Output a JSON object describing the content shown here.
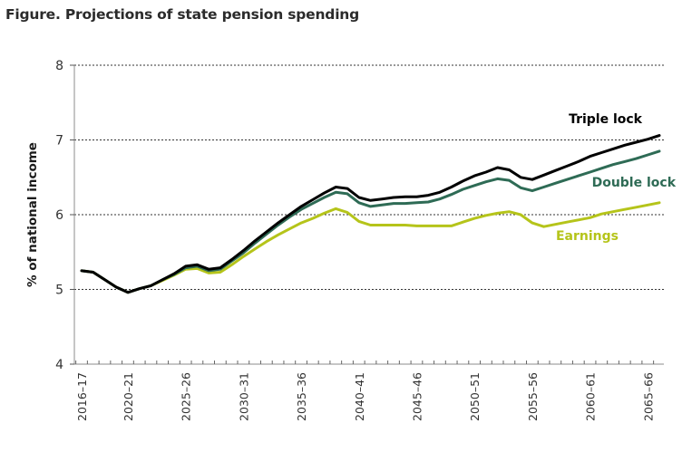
{
  "chart_data": {
    "type": "line",
    "title": "Figure. Projections of state pension spending",
    "xlabel": "",
    "ylabel": "% of national income",
    "ylim": [
      4,
      8
    ],
    "yticks": [
      4,
      5,
      6,
      7,
      8
    ],
    "grid": "horizontal dotted at 5, 6, 7",
    "x": [
      "2016–17",
      "2017–18",
      "2018–19",
      "2019–20",
      "2020–21",
      "2021–22",
      "2022–23",
      "2023–24",
      "2024–25",
      "2025–26",
      "2026–27",
      "2027–28",
      "2028–29",
      "2029–30",
      "2030–31",
      "2031–32",
      "2032–33",
      "2033–34",
      "2034–35",
      "2035–36",
      "2036–37",
      "2037–38",
      "2038–39",
      "2039–40",
      "2040–41",
      "2041–42",
      "2042–43",
      "2043–44",
      "2044–45",
      "2045–46",
      "2046–47",
      "2047–48",
      "2048–49",
      "2049–50",
      "2050–51",
      "2051–52",
      "2052–53",
      "2053–54",
      "2054–55",
      "2055–56",
      "2056–57",
      "2057–58",
      "2058–59",
      "2059–60",
      "2060–61",
      "2061–62",
      "2062–63",
      "2063–64",
      "2064–65",
      "2065–66",
      "2066–67"
    ],
    "xtick_labels": [
      "2016–17",
      "2020–21",
      "2025–26",
      "2030–31",
      "2035–36",
      "2040–41",
      "2045–46",
      "2050–51",
      "2055–56",
      "2060–61",
      "2065–66"
    ],
    "xtick_label_indices": [
      0,
      4,
      9,
      14,
      19,
      24,
      29,
      34,
      39,
      44,
      49
    ],
    "series": [
      {
        "name": "Triple lock",
        "color": "#000000",
        "values": [
          5.25,
          5.23,
          5.13,
          5.03,
          4.96,
          5.01,
          5.05,
          5.13,
          5.21,
          5.31,
          5.33,
          5.27,
          5.29,
          5.4,
          5.52,
          5.65,
          5.77,
          5.89,
          6.0,
          6.11,
          6.2,
          6.29,
          6.37,
          6.35,
          6.23,
          6.19,
          6.21,
          6.23,
          6.24,
          6.24,
          6.26,
          6.3,
          6.37,
          6.45,
          6.52,
          6.57,
          6.63,
          6.6,
          6.5,
          6.47,
          6.53,
          6.59,
          6.65,
          6.71,
          6.78,
          6.83,
          6.88,
          6.93,
          6.97,
          7.01,
          7.06
        ]
      },
      {
        "name": "Double lock",
        "color": "#2e6b55",
        "values": [
          5.25,
          5.23,
          5.13,
          5.03,
          4.96,
          5.01,
          5.05,
          5.13,
          5.2,
          5.29,
          5.31,
          5.25,
          5.27,
          5.38,
          5.49,
          5.62,
          5.74,
          5.86,
          5.97,
          6.07,
          6.15,
          6.23,
          6.3,
          6.28,
          6.16,
          6.11,
          6.13,
          6.15,
          6.15,
          6.16,
          6.17,
          6.21,
          6.27,
          6.34,
          6.39,
          6.44,
          6.48,
          6.46,
          6.36,
          6.32,
          6.37,
          6.42,
          6.47,
          6.52,
          6.57,
          6.62,
          6.67,
          6.71,
          6.75,
          6.8,
          6.85
        ]
      },
      {
        "name": "Earnings",
        "color": "#b5c41a",
        "values": [
          5.25,
          5.23,
          5.13,
          5.03,
          4.96,
          5.01,
          5.05,
          5.12,
          5.19,
          5.27,
          5.28,
          5.22,
          5.23,
          5.33,
          5.44,
          5.54,
          5.64,
          5.73,
          5.81,
          5.89,
          5.95,
          6.02,
          6.08,
          6.03,
          5.91,
          5.86,
          5.86,
          5.86,
          5.86,
          5.85,
          5.85,
          5.85,
          5.85,
          5.9,
          5.95,
          5.99,
          6.02,
          6.04,
          6.0,
          5.89,
          5.84,
          5.87,
          5.9,
          5.93,
          5.96,
          6.01,
          6.04,
          6.07,
          6.1,
          6.13,
          6.16
        ]
      }
    ],
    "annotations": [
      {
        "text": "Triple lock",
        "series": "Triple lock",
        "position": "above line end"
      },
      {
        "text": "Double lock",
        "series": "Double lock",
        "position": "below line end"
      },
      {
        "text": "Earnings",
        "series": "Earnings",
        "position": "below line end"
      }
    ],
    "legend": "none (direct labels near right end)"
  }
}
